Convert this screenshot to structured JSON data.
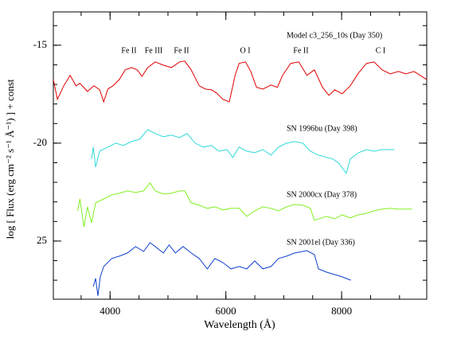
{
  "chart_data": {
    "type": "line",
    "xlabel": "Wavelength (Å)",
    "ylabel": "log [ Flux (erg cm⁻² s⁻¹ Å⁻¹) ] + const",
    "xlim": [
      3020,
      9470
    ],
    "ylim": [
      -27.97,
      -13.3
    ],
    "xticks": [
      4000,
      6000,
      8000
    ],
    "yticks": [
      -15,
      -20,
      {
        "value": -25,
        "label": "25"
      }
    ],
    "annotations": [
      "Fe II",
      "Fe III",
      "Fe II",
      "O I",
      "Fe II",
      "C I"
    ],
    "series": [
      {
        "name": "Model c3_256_10s (Day 350)",
        "color": "#e00000",
        "x": [
          3020,
          3090,
          3200,
          3310,
          3410,
          3480,
          3610,
          3720,
          3820,
          3890,
          3960,
          4050,
          4160,
          4260,
          4370,
          4470,
          4550,
          4650,
          4780,
          4920,
          5060,
          5200,
          5290,
          5400,
          5540,
          5650,
          5750,
          5840,
          5950,
          6060,
          6160,
          6230,
          6340,
          6430,
          6530,
          6640,
          6780,
          6890,
          6980,
          7120,
          7260,
          7400,
          7530,
          7670,
          7780,
          7880,
          8010,
          8150,
          8290,
          8430,
          8560,
          8700,
          8840,
          8980,
          9110,
          9250,
          9470
        ],
        "values": [
          -16.75,
          -17.76,
          -17.07,
          -16.54,
          -17.07,
          -16.95,
          -17.36,
          -17.07,
          -17.28,
          -17.89,
          -17.24,
          -17.07,
          -16.75,
          -16.26,
          -16.14,
          -16.26,
          -16.59,
          -16.14,
          -15.85,
          -16.02,
          -16.14,
          -15.85,
          -15.81,
          -16.26,
          -17.07,
          -17.24,
          -17.28,
          -17.44,
          -17.76,
          -17.89,
          -16.54,
          -15.93,
          -15.85,
          -16.34,
          -17.15,
          -17.24,
          -17.03,
          -17.15,
          -16.54,
          -15.93,
          -15.85,
          -16.54,
          -16.26,
          -17.15,
          -17.56,
          -17.28,
          -17.48,
          -17.07,
          -16.42,
          -15.93,
          -15.85,
          -16.26,
          -16.46,
          -16.34,
          -16.46,
          -16.34,
          -16.75
        ]
      },
      {
        "name": "SN 1996bu (Day 398)",
        "color": "#30d8d8",
        "x": [
          3680,
          3710,
          3750,
          3820,
          3960,
          4100,
          4230,
          4370,
          4510,
          4650,
          4780,
          4920,
          5060,
          5200,
          5330,
          5470,
          5610,
          5750,
          5880,
          6020,
          6120,
          6230,
          6360,
          6500,
          6640,
          6780,
          6910,
          7050,
          7190,
          7330,
          7460,
          7600,
          7740,
          7850,
          7950,
          8080,
          8150,
          8290,
          8430,
          8560,
          8700,
          8910
        ],
        "values": [
          -20.81,
          -20.2,
          -21.22,
          -20.41,
          -20.2,
          -20.0,
          -20.12,
          -19.92,
          -19.8,
          -19.31,
          -19.51,
          -19.67,
          -19.59,
          -19.72,
          -19.51,
          -20.0,
          -20.2,
          -20.12,
          -20.41,
          -20.33,
          -20.73,
          -20.2,
          -20.41,
          -20.49,
          -20.33,
          -20.61,
          -20.2,
          -20.0,
          -19.92,
          -20.0,
          -20.41,
          -20.61,
          -20.73,
          -20.81,
          -21.02,
          -21.54,
          -20.81,
          -20.49,
          -20.33,
          -20.41,
          -20.33,
          -20.33
        ]
      },
      {
        "name": "SN 2000cx (Day 378)",
        "color": "#80f020",
        "x": [
          3440,
          3480,
          3550,
          3610,
          3680,
          3750,
          3890,
          4030,
          4160,
          4300,
          4440,
          4580,
          4690,
          4780,
          4920,
          5060,
          5200,
          5290,
          5400,
          5540,
          5680,
          5810,
          5950,
          6090,
          6230,
          6360,
          6500,
          6640,
          6780,
          6910,
          7050,
          7190,
          7330,
          7460,
          7530,
          7740,
          7880,
          8010,
          8150,
          8290,
          8430,
          8560,
          8700,
          8840,
          8980,
          9220
        ],
        "values": [
          -23.46,
          -22.85,
          -24.27,
          -23.25,
          -24.07,
          -23.05,
          -22.85,
          -22.64,
          -22.56,
          -22.44,
          -22.52,
          -22.44,
          -22.03,
          -22.44,
          -22.6,
          -22.56,
          -22.44,
          -22.44,
          -23.05,
          -23.17,
          -23.33,
          -23.25,
          -23.41,
          -23.33,
          -23.33,
          -23.74,
          -23.46,
          -23.25,
          -23.33,
          -23.46,
          -23.25,
          -23.13,
          -23.17,
          -23.33,
          -23.94,
          -23.74,
          -23.86,
          -23.66,
          -23.82,
          -23.66,
          -23.58,
          -23.46,
          -23.37,
          -23.33,
          -23.37,
          -23.37
        ]
      },
      {
        "name": "SN 2001el (Day 336)",
        "color": "#1040d0",
        "x": [
          3710,
          3750,
          3790,
          3830,
          3890,
          4030,
          4160,
          4300,
          4440,
          4580,
          4690,
          4780,
          4920,
          5020,
          5130,
          5260,
          5400,
          5540,
          5680,
          5810,
          5950,
          6090,
          6230,
          6360,
          6500,
          6640,
          6780,
          6910,
          7050,
          7190,
          7400,
          7530,
          7600,
          7740,
          7880,
          8010,
          8160
        ],
        "values": [
          -27.32,
          -26.91,
          -27.8,
          -26.83,
          -26.3,
          -25.89,
          -25.77,
          -25.61,
          -25.28,
          -25.53,
          -25.08,
          -25.28,
          -25.61,
          -25.2,
          -25.61,
          -25.28,
          -25.61,
          -25.89,
          -26.42,
          -25.89,
          -26.1,
          -26.42,
          -26.3,
          -26.42,
          -26.02,
          -26.42,
          -26.3,
          -25.89,
          -25.77,
          -25.61,
          -25.49,
          -25.69,
          -26.42,
          -26.59,
          -26.71,
          -26.83,
          -27.0
        ]
      }
    ]
  }
}
